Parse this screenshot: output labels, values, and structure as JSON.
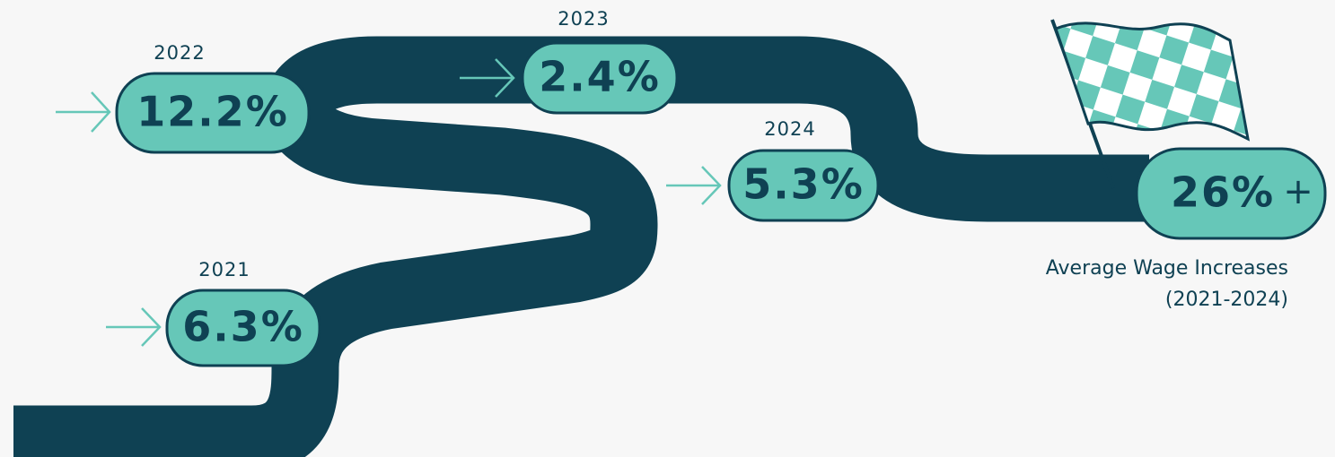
{
  "milestones": [
    {
      "year": "2021",
      "value": "6.3%"
    },
    {
      "year": "2022",
      "value": "12.2%"
    },
    {
      "year": "2023",
      "value": "2.4%"
    },
    {
      "year": "2024",
      "value": "5.3%"
    }
  ],
  "total": {
    "value": "26%",
    "suffix": "+"
  },
  "caption": {
    "line1": "Average Wage Increases",
    "line2": "(2021-2024)"
  }
}
